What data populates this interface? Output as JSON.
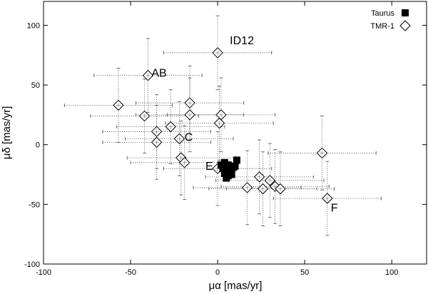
{
  "chart_data": {
    "type": "scatter",
    "xlabel": "μα [mas/yr]",
    "ylabel": "μδ [mas/yr]",
    "xlim": [
      -100,
      120
    ],
    "ylim": [
      -100,
      120
    ],
    "xticks": [
      -100,
      -50,
      0,
      50,
      100
    ],
    "yticks": [
      -100,
      -50,
      0,
      50,
      100
    ],
    "legend_position": "top-right",
    "series": [
      {
        "name": "Taurus",
        "marker": "filled-square",
        "color": "#000000",
        "points": [
          {
            "x": 2,
            "y": -17
          },
          {
            "x": 4,
            "y": -15
          },
          {
            "x": 6,
            "y": -17
          },
          {
            "x": 11,
            "y": -13
          },
          {
            "x": 3,
            "y": -20
          },
          {
            "x": 5,
            "y": -22
          },
          {
            "x": 7,
            "y": -21
          },
          {
            "x": 9,
            "y": -19
          },
          {
            "x": 4,
            "y": -24
          },
          {
            "x": 6,
            "y": -26
          },
          {
            "x": 8,
            "y": -23
          },
          {
            "x": 5,
            "y": -28
          },
          {
            "x": 10,
            "y": -18
          },
          {
            "x": 7,
            "y": -19
          },
          {
            "x": 3,
            "y": -18
          },
          {
            "x": 8,
            "y": -25
          }
        ]
      },
      {
        "name": "TMR-1",
        "marker": "open-diamond",
        "color": "#000000",
        "points": [
          {
            "x": 0,
            "y": 77,
            "xerr": 31,
            "yerr": 31
          },
          {
            "x": -40,
            "y": 58,
            "xerr": 31,
            "yerr": 31
          },
          {
            "x": -57,
            "y": 33,
            "xerr": 31,
            "yerr": 31
          },
          {
            "x": -16,
            "y": 35,
            "xerr": 31,
            "yerr": 31
          },
          {
            "x": -42,
            "y": 24,
            "xerr": 31,
            "yerr": 31
          },
          {
            "x": -16,
            "y": 25,
            "xerr": 31,
            "yerr": 31
          },
          {
            "x": 2,
            "y": 25,
            "xerr": 31,
            "yerr": 31
          },
          {
            "x": 1,
            "y": 18,
            "xerr": 31,
            "yerr": 31
          },
          {
            "x": -27,
            "y": 15,
            "xerr": 31,
            "yerr": 31
          },
          {
            "x": -35,
            "y": 11,
            "xerr": 31,
            "yerr": 31
          },
          {
            "x": -22,
            "y": 5,
            "xerr": 31,
            "yerr": 31
          },
          {
            "x": -35,
            "y": 2,
            "xerr": 31,
            "yerr": 31
          },
          {
            "x": -21,
            "y": -11,
            "xerr": 31,
            "yerr": 31
          },
          {
            "x": -19,
            "y": -15,
            "xerr": 31,
            "yerr": 31
          },
          {
            "x": 60,
            "y": -7,
            "xerr": 31,
            "yerr": 31
          },
          {
            "x": 0,
            "y": -20,
            "xerr": 31,
            "yerr": 31
          },
          {
            "x": 24,
            "y": -27,
            "xerr": 31,
            "yerr": 31
          },
          {
            "x": 30,
            "y": -30,
            "xerr": 31,
            "yerr": 31
          },
          {
            "x": 33,
            "y": -35,
            "xerr": 31,
            "yerr": 31
          },
          {
            "x": 36,
            "y": -37,
            "xerr": 31,
            "yerr": 31
          },
          {
            "x": 26,
            "y": -37,
            "xerr": 31,
            "yerr": 31
          },
          {
            "x": 17,
            "y": -36,
            "xerr": 31,
            "yerr": 31
          },
          {
            "x": 63,
            "y": -45,
            "xerr": 31,
            "yerr": 31
          }
        ]
      }
    ],
    "annotations": [
      {
        "text": "ID12",
        "x": 7,
        "y": 84
      },
      {
        "text": "AB",
        "x": -38,
        "y": 57
      },
      {
        "text": "C",
        "x": -19,
        "y": 3
      },
      {
        "text": "E",
        "x": -7,
        "y": -21
      },
      {
        "text": "F",
        "x": 65,
        "y": -56
      }
    ]
  }
}
